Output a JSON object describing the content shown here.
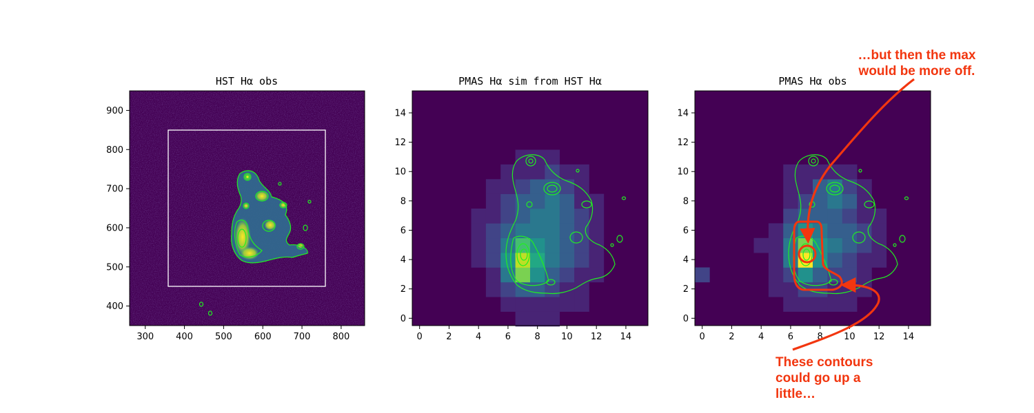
{
  "chart_data": [
    {
      "type": "heatmap",
      "title": "HST Hα obs",
      "xlim": [
        260,
        860
      ],
      "ylim": [
        350,
        950
      ],
      "xticks": [
        300,
        400,
        500,
        600,
        700,
        800
      ],
      "yticks": [
        400,
        500,
        600,
        700,
        800,
        900
      ],
      "colormap": "viridis",
      "contour_color": "#22ee22",
      "footprint_box": {
        "x": [
          358,
          758
        ],
        "y": [
          452,
          852
        ],
        "color": "#ffffff"
      }
    },
    {
      "type": "heatmap",
      "title": "PMAS Hα sim from HST Hα",
      "xlim": [
        -0.5,
        15.5
      ],
      "ylim": [
        -0.5,
        15.5
      ],
      "xticks": [
        0,
        2,
        4,
        6,
        8,
        10,
        12,
        14
      ],
      "yticks": [
        0,
        2,
        4,
        6,
        8,
        10,
        12,
        14
      ],
      "colormap": "viridis",
      "contour_color": "#22ee22"
    },
    {
      "type": "heatmap",
      "title": "PMAS Hα obs",
      "xlim": [
        -0.5,
        15.5
      ],
      "ylim": [
        -0.5,
        15.5
      ],
      "xticks": [
        0,
        2,
        4,
        6,
        8,
        10,
        12,
        14
      ],
      "yticks": [
        0,
        2,
        4,
        6,
        8,
        10,
        12,
        14
      ],
      "colormap": "viridis",
      "contour_color": "#22ee22"
    }
  ],
  "annotations": {
    "top_note": [
      "…but then the max",
      "would be more off."
    ],
    "bottom_note": [
      "These contours",
      "could go up a",
      "little…"
    ],
    "color": "#f2360f"
  }
}
